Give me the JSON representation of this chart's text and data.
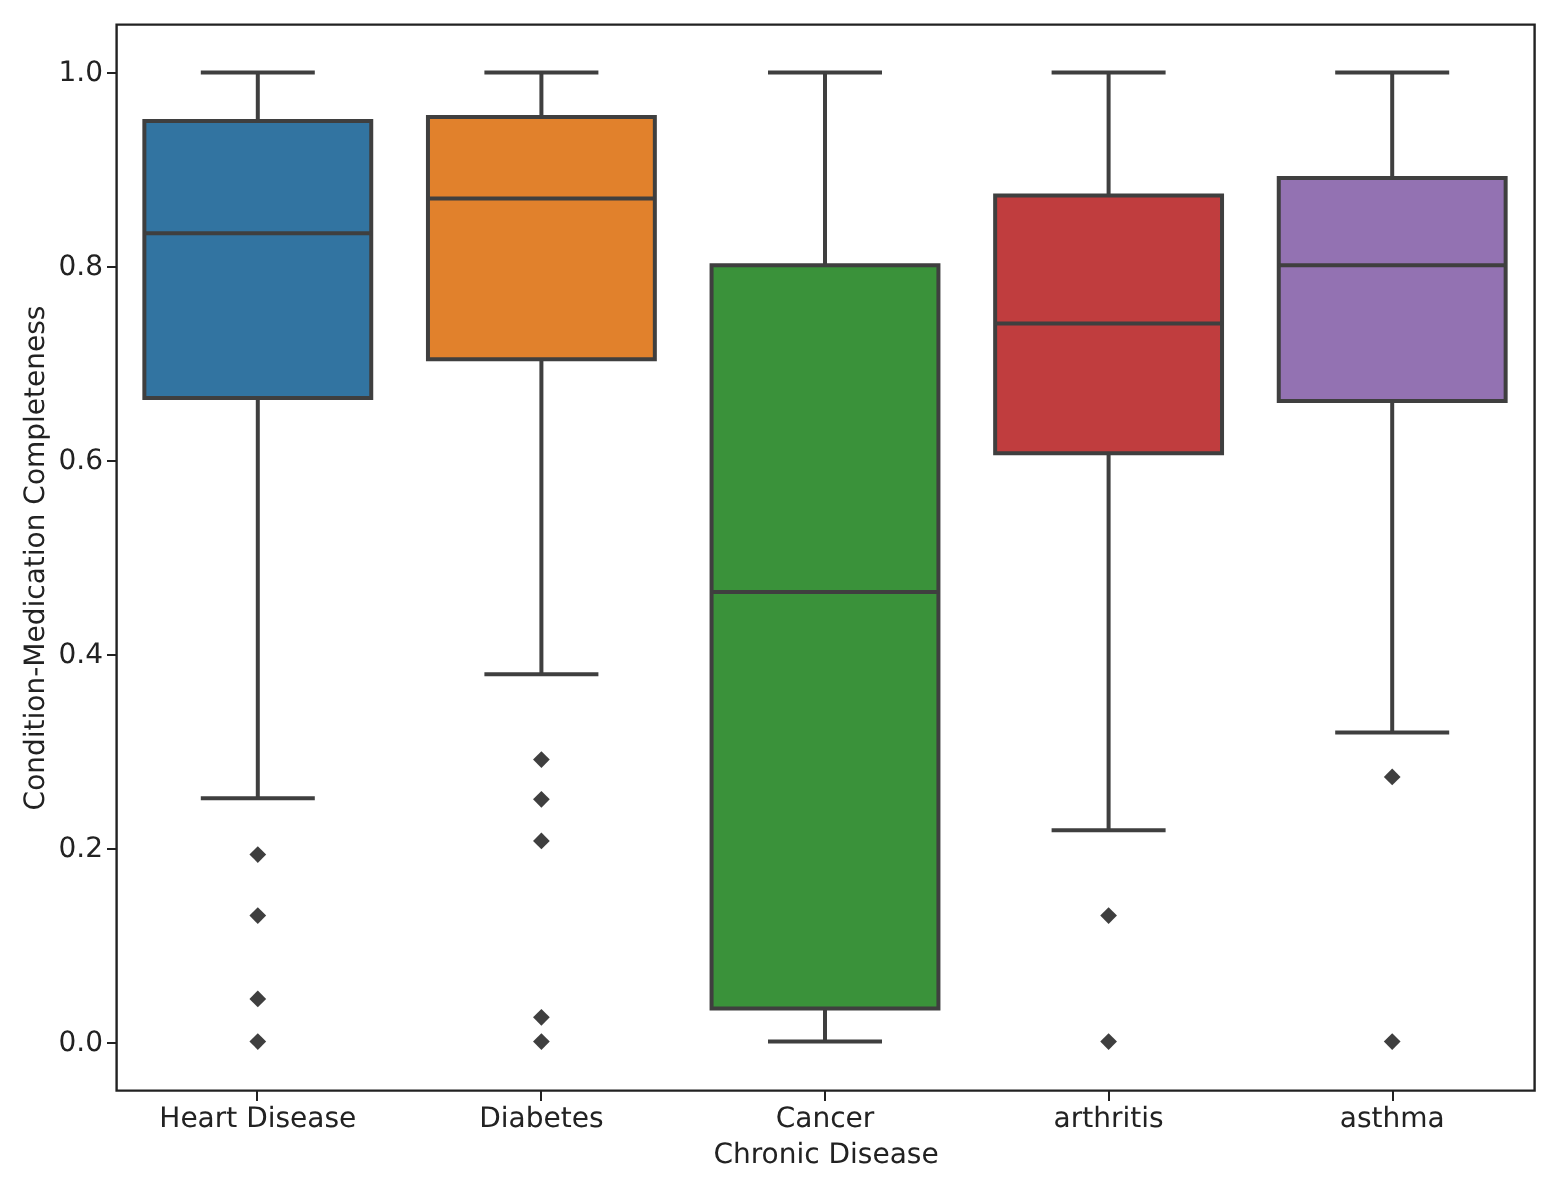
{
  "chart_data": {
    "type": "box",
    "xlabel": "Chronic Disease",
    "ylabel": "Condition-Medication Completeness",
    "categories": [
      "Heart Disease",
      "Diabetes",
      "Cancer",
      "arthritis",
      "asthma"
    ],
    "colors": [
      "#3274a1",
      "#e1812c",
      "#3a923a",
      "#c03d3e",
      "#9372b2"
    ],
    "boxes": [
      {
        "low": 0.251,
        "q1": 0.664,
        "median": 0.834,
        "q3": 0.95,
        "high": 1.0,
        "outliers": [
          0.193,
          0.13,
          0.044,
          0.0
        ]
      },
      {
        "low": 0.379,
        "q1": 0.704,
        "median": 0.87,
        "q3": 0.954,
        "high": 1.0,
        "outliers": [
          0.291,
          0.25,
          0.207,
          0.025,
          0.0
        ]
      },
      {
        "low": 0.0,
        "q1": 0.034,
        "median": 0.464,
        "q3": 0.801,
        "high": 1.0
      },
      {
        "low": 0.218,
        "q1": 0.607,
        "median": 0.741,
        "q3": 0.873,
        "high": 1.0,
        "outliers": [
          0.13,
          0.0
        ]
      },
      {
        "low": 0.319,
        "q1": 0.661,
        "median": 0.801,
        "q3": 0.891,
        "high": 1.0,
        "outliers": [
          0.273,
          0.0
        ]
      }
    ],
    "ylim": [
      -0.05,
      1.05
    ],
    "yticks": [
      {
        "value": 0,
        "label": "0.0"
      },
      0.2,
      0.4,
      0.6,
      0.8,
      {
        "value": 1,
        "label": "1.0"
      }
    ],
    "grid": false,
    "marker": "diamond"
  }
}
